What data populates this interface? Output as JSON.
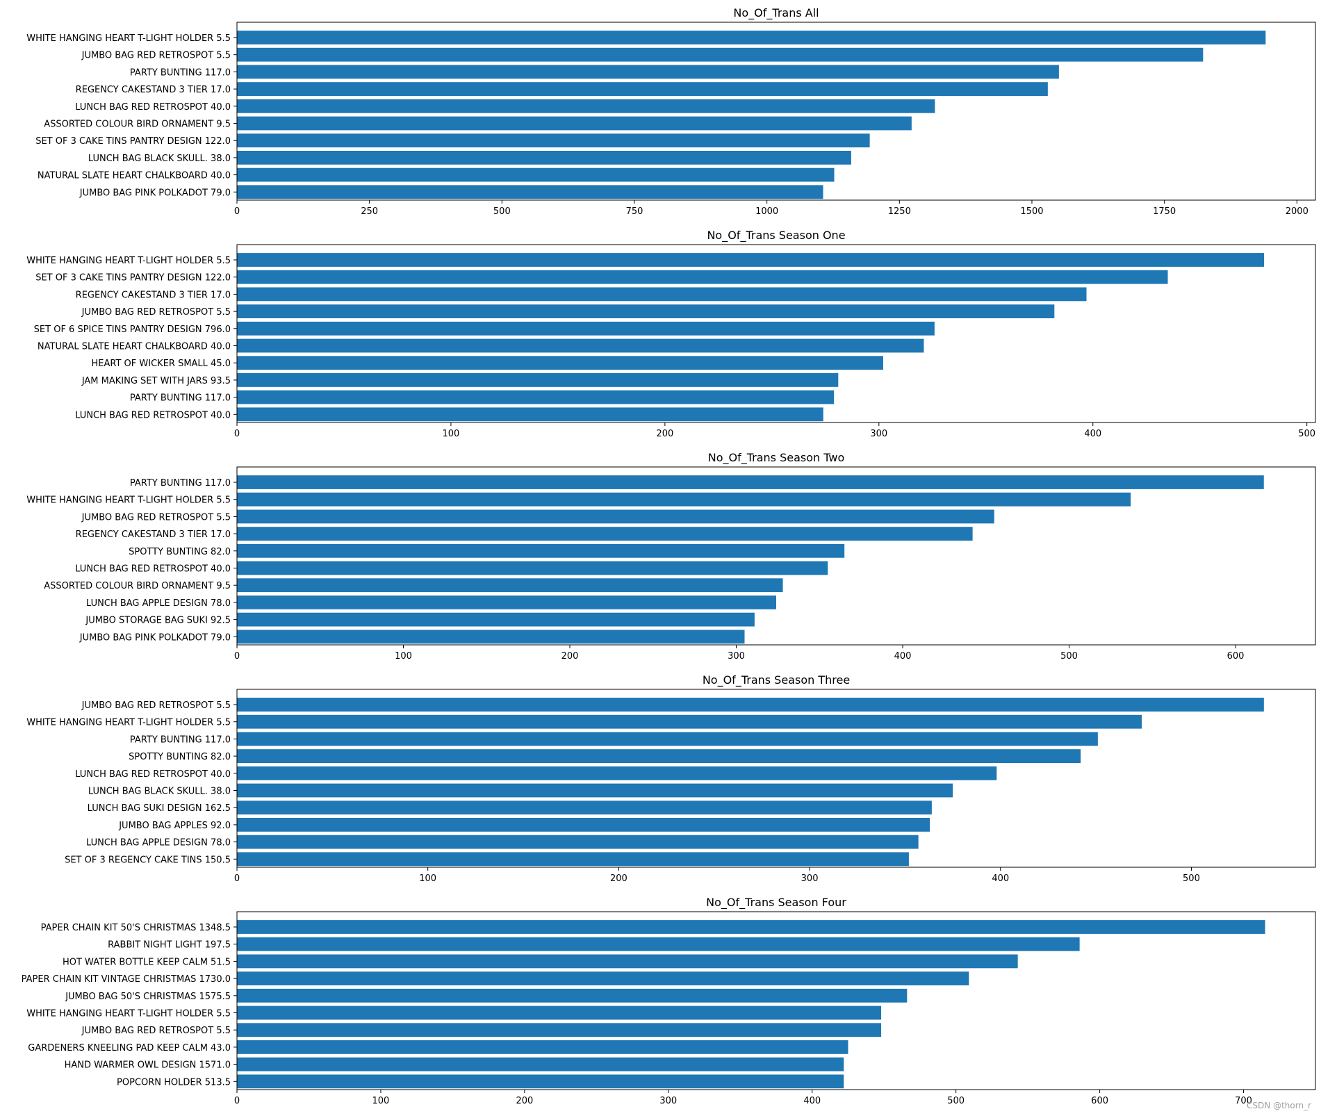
{
  "bar_color": "#1f77b4",
  "watermark": "CSDN @thorn_r",
  "chart_data": [
    {
      "type": "bar",
      "orientation": "horizontal",
      "title": "No_Of_Trans All",
      "categories": [
        "JUMBO BAG PINK POLKADOT 79.0",
        "NATURAL SLATE HEART CHALKBOARD 40.0",
        "LUNCH BAG  BLACK SKULL. 38.0",
        "SET OF 3 CAKE TINS PANTRY DESIGN 122.0",
        "ASSORTED COLOUR BIRD ORNAMENT 9.5",
        "LUNCH BAG RED RETROSPOT 40.0",
        "REGENCY CAKESTAND 3 TIER 17.0",
        "PARTY BUNTING 117.0",
        "JUMBO BAG RED RETROSPOT 5.5",
        "WHITE HANGING HEART T-LIGHT HOLDER 5.5"
      ],
      "values": [
        1106,
        1127,
        1159,
        1194,
        1273,
        1317,
        1530,
        1551,
        1823,
        1941
      ],
      "xlim": [
        0,
        2035
      ],
      "xticks": [
        "0",
        "250",
        "500",
        "750",
        "1000",
        "1250",
        "1500",
        "1750",
        "2000"
      ],
      "grid": false
    },
    {
      "type": "bar",
      "orientation": "horizontal",
      "title": "No_Of_Trans Season One",
      "categories": [
        "LUNCH BAG RED RETROSPOT 40.0",
        "PARTY BUNTING 117.0",
        "JAM MAKING SET WITH JARS 93.5",
        "HEART OF WICKER SMALL 45.0",
        "NATURAL SLATE HEART CHALKBOARD 40.0",
        "SET OF 6 SPICE TINS PANTRY DESIGN 796.0",
        "JUMBO BAG RED RETROSPOT 5.5",
        "REGENCY CAKESTAND 3 TIER 17.0",
        "SET OF 3 CAKE TINS PANTRY DESIGN 122.0",
        "WHITE HANGING HEART T-LIGHT HOLDER 5.5"
      ],
      "values": [
        274,
        279,
        281,
        302,
        321,
        326,
        382,
        397,
        435,
        480
      ],
      "xlim": [
        0,
        504
      ],
      "xticks": [
        "0",
        "100",
        "200",
        "300",
        "400",
        "500"
      ],
      "grid": false
    },
    {
      "type": "bar",
      "orientation": "horizontal",
      "title": "No_Of_Trans Season Two",
      "categories": [
        "JUMBO BAG PINK POLKADOT 79.0",
        "JUMBO STORAGE BAG SUKI 92.5",
        "LUNCH BAG APPLE DESIGN 78.0",
        "ASSORTED COLOUR BIRD ORNAMENT 9.5",
        "LUNCH BAG RED RETROSPOT 40.0",
        "SPOTTY BUNTING 82.0",
        "REGENCY CAKESTAND 3 TIER 17.0",
        "JUMBO BAG RED RETROSPOT 5.5",
        "WHITE HANGING HEART T-LIGHT HOLDER 5.5",
        "PARTY BUNTING 117.0"
      ],
      "values": [
        305,
        311,
        324,
        328,
        355,
        365,
        442,
        455,
        537,
        617
      ],
      "xlim": [
        0,
        648
      ],
      "xticks": [
        "0",
        "100",
        "200",
        "300",
        "400",
        "500",
        "600"
      ],
      "grid": false
    },
    {
      "type": "bar",
      "orientation": "horizontal",
      "title": "No_Of_Trans Season Three",
      "categories": [
        "SET OF 3 REGENCY CAKE TINS 150.5",
        "LUNCH BAG APPLE DESIGN 78.0",
        "JUMBO BAG APPLES 92.0",
        "LUNCH BAG SUKI DESIGN 162.5",
        "LUNCH BAG  BLACK SKULL. 38.0",
        "LUNCH BAG RED RETROSPOT 40.0",
        "SPOTTY BUNTING 82.0",
        "PARTY BUNTING 117.0",
        "WHITE HANGING HEART T-LIGHT HOLDER 5.5",
        "JUMBO BAG RED RETROSPOT 5.5"
      ],
      "values": [
        352,
        357,
        363,
        364,
        375,
        398,
        442,
        451,
        474,
        538
      ],
      "xlim": [
        0,
        565
      ],
      "xticks": [
        "0",
        "100",
        "200",
        "300",
        "400",
        "500"
      ],
      "grid": false
    },
    {
      "type": "bar",
      "orientation": "horizontal",
      "title": "No_Of_Trans Season Four",
      "categories": [
        "POPCORN HOLDER 513.5",
        "HAND WARMER OWL DESIGN 1571.0",
        "GARDENERS KNEELING PAD KEEP CALM 43.0",
        "JUMBO BAG RED RETROSPOT 5.5",
        "WHITE HANGING HEART T-LIGHT HOLDER 5.5",
        "JUMBO BAG 50'S CHRISTMAS 1575.5",
        "PAPER CHAIN KIT VINTAGE CHRISTMAS 1730.0",
        "HOT WATER BOTTLE KEEP CALM 51.5",
        "RABBIT NIGHT LIGHT 197.5",
        "PAPER CHAIN KIT 50'S CHRISTMAS 1348.5"
      ],
      "values": [
        422,
        422,
        425,
        448,
        448,
        466,
        509,
        543,
        586,
        715
      ],
      "xlim": [
        0,
        750
      ],
      "xticks": [
        "0",
        "100",
        "200",
        "300",
        "400",
        "500",
        "600",
        "700"
      ],
      "grid": false
    }
  ]
}
